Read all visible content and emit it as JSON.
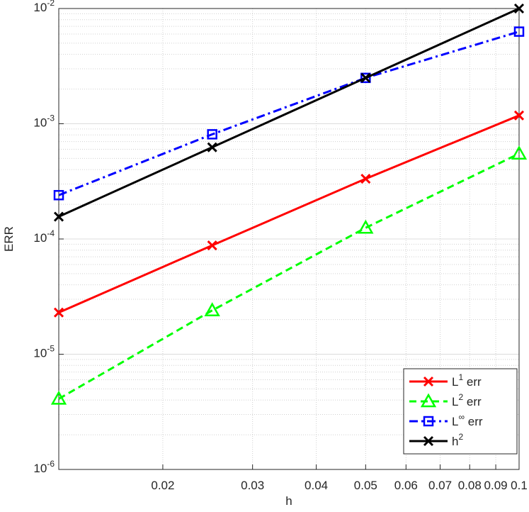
{
  "chart_data": {
    "type": "line",
    "xlabel": "h",
    "ylabel": "ERR",
    "x": [
      0.0125,
      0.025,
      0.05,
      0.1
    ],
    "series": [
      {
        "name": "L^1 err",
        "color": "#ff0000",
        "dash": "solid",
        "marker": "x",
        "values": [
          2.3e-05,
          8.8e-05,
          0.000333,
          0.00118
        ]
      },
      {
        "name": "L^2 err",
        "color": "#00ff00",
        "dash": "dashed",
        "marker": "triangle",
        "values": [
          4.1e-06,
          2.4e-05,
          0.000125,
          0.00055
        ]
      },
      {
        "name": "L^∞ err",
        "color": "#0000ff",
        "dash": "dashdot",
        "marker": "square",
        "values": [
          0.00024,
          0.00081,
          0.0025,
          0.0063
        ]
      },
      {
        "name": "h^2",
        "color": "#000000",
        "dash": "solid",
        "marker": "x",
        "values": [
          0.00015625,
          0.000625,
          0.0025,
          0.01
        ]
      }
    ],
    "xscale": "log",
    "yscale": "log",
    "xlim": [
      0.0125,
      0.1
    ],
    "ylim": [
      1e-06,
      0.01
    ],
    "xticks": [
      0.02,
      0.03,
      0.04,
      0.05,
      0.06,
      0.07,
      0.08,
      0.09,
      0.1
    ],
    "yticks": [
      {
        "value": 1e-06,
        "label": "10^-6"
      },
      {
        "value": 1e-05,
        "label": "10^-5"
      },
      {
        "value": 0.0001,
        "label": "10^-4"
      },
      {
        "value": 0.001,
        "label": "10^-3"
      },
      {
        "value": 0.01,
        "label": "10^-2"
      }
    ],
    "grid": true,
    "minor_grid": true,
    "legend": "lower right"
  }
}
